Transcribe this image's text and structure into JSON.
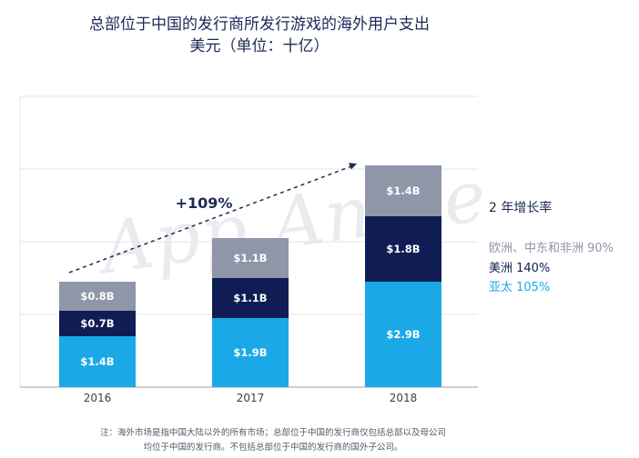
{
  "title": {
    "line1": "总部位于中国的发行商所发行游戏的海外用户支出",
    "line2": "美元（单位：十亿）"
  },
  "watermark": "App Annie",
  "legend": {
    "heading": "2 年增长率",
    "items": [
      {
        "label": "欧洲、中东和非洲 90%",
        "color": "#8e96a8"
      },
      {
        "label": "美洲 140%",
        "color": "#0f1d54"
      },
      {
        "label": "亚太 105%",
        "color": "#1aa9e6"
      }
    ]
  },
  "footnote": {
    "line1": "注：海外市场是指中国大陆以外的所有市场；总部位于中国的发行商仅包括总部以及母公司",
    "line2": "均位于中国的发行商。不包括总部位于中国的发行商的国外子公司。"
  },
  "chart_data": {
    "type": "bar",
    "stacked": true,
    "categories": [
      "2016",
      "2017",
      "2018"
    ],
    "series": [
      {
        "name": "亚太",
        "values": [
          1.4,
          1.9,
          2.9
        ],
        "labels": [
          "$1.4B",
          "$1.9B",
          "$2.9B"
        ],
        "color": "#1aa9e6"
      },
      {
        "name": "美洲",
        "values": [
          0.7,
          1.1,
          1.8
        ],
        "labels": [
          "$0.7B",
          "$1.1B",
          "$1.8B"
        ],
        "color": "#0f1d54"
      },
      {
        "name": "欧洲、中东和非洲",
        "values": [
          0.8,
          1.1,
          1.4
        ],
        "labels": [
          "$0.8B",
          "$1.1B",
          "$1.4B"
        ],
        "color": "#8e96a8"
      }
    ],
    "ylim": [
      0,
      8
    ],
    "grid": true,
    "annotation": {
      "text": "+109%",
      "from": "2016",
      "to": "2018"
    }
  }
}
